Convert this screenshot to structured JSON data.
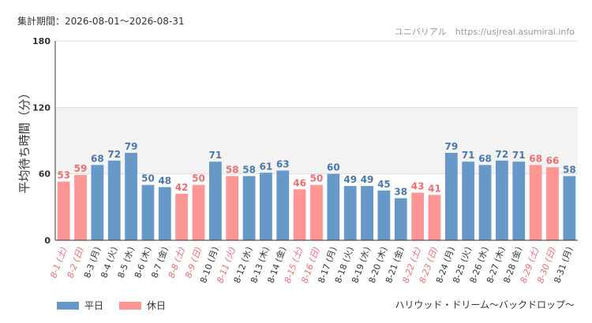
{
  "header": {
    "period": "集計期間：2026-08-01～2026-08-31",
    "source": "ユニバリアル　https://usjreal.asumirai.info"
  },
  "subtitle": "ハリウッド・ドリーム～バックドロップ～",
  "colors": {
    "weekday": "#6699c8",
    "holiday": "#ff9696",
    "weekday_label": "#4a78a8",
    "holiday_label": "#ee6e72",
    "band": "#f3f3f3",
    "grid": "#dddddd"
  },
  "chart_data": {
    "type": "bar",
    "title": "",
    "xlabel": "",
    "ylabel": "平均待ち時間（分）",
    "ylim": [
      0,
      180
    ],
    "yticks": [
      0,
      60,
      120,
      180
    ],
    "shaded_band": [
      60,
      120
    ],
    "legend_position": "bottom-left",
    "series": [
      {
        "name": "平日",
        "type": "weekday"
      },
      {
        "name": "休日",
        "type": "holiday"
      }
    ],
    "categories": [
      "8-1 (土)",
      "8-2 (日)",
      "8-3 (月)",
      "8-4 (火)",
      "8-5 (水)",
      "8-6 (木)",
      "8-7 (金)",
      "8-8 (土)",
      "8-9 (日)",
      "8-10 (月)",
      "8-11 (火)",
      "8-12 (水)",
      "8-13 (木)",
      "8-14 (金)",
      "8-15 (土)",
      "8-16 (日)",
      "8-17 (月)",
      "8-18 (火)",
      "8-19 (水)",
      "8-20 (木)",
      "8-21 (金)",
      "8-22 (土)",
      "8-23 (日)",
      "8-24 (月)",
      "8-25 (火)",
      "8-26 (水)",
      "8-27 (木)",
      "8-28 (金)",
      "8-29 (土)",
      "8-30 (日)",
      "8-31 (月)"
    ],
    "values": [
      53,
      59,
      68,
      72,
      79,
      50,
      48,
      42,
      50,
      71,
      58,
      58,
      61,
      63,
      46,
      50,
      60,
      49,
      49,
      45,
      38,
      43,
      41,
      79,
      71,
      68,
      72,
      71,
      68,
      66,
      58
    ],
    "day_type": [
      "holiday",
      "holiday",
      "weekday",
      "weekday",
      "weekday",
      "weekday",
      "weekday",
      "holiday",
      "holiday",
      "weekday",
      "holiday",
      "weekday",
      "weekday",
      "weekday",
      "holiday",
      "holiday",
      "weekday",
      "weekday",
      "weekday",
      "weekday",
      "weekday",
      "holiday",
      "holiday",
      "weekday",
      "weekday",
      "weekday",
      "weekday",
      "weekday",
      "holiday",
      "holiday",
      "weekday"
    ]
  }
}
